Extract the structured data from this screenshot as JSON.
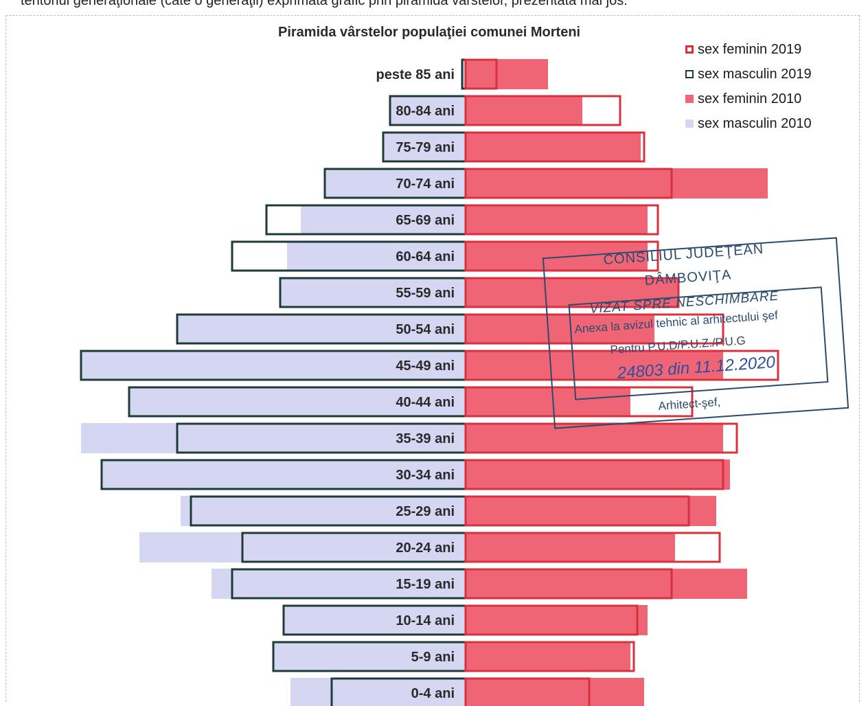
{
  "page_caption": "teritoriul generaţionale (câte o generaţii) exprimată grafic prin piramida vârstelor, prezentată mai jos:",
  "colors": {
    "female_2019": "#d8303f",
    "male_2019": "#1d3b37",
    "female_2010": "#f06576",
    "male_2010": "#d4d6f2"
  },
  "chart_data": {
    "type": "bar",
    "orientation": "horizontal-pyramid",
    "title": "Piramida vârstelor populaţiei comunei Morteni",
    "categories": [
      "peste 85 ani",
      "80-84 ani",
      "75-79 ani",
      "70-74 ani",
      "65-69 ani",
      "60-64 ani",
      "55-59 ani",
      "50-54 ani",
      "45-49 ani",
      "40-44 ani",
      "35-39 ani",
      "30-34 ani",
      "25-29 ani",
      "20-24 ani",
      "15-19 ani",
      "10-14 ani",
      "5-9 ani",
      "0-4 ani"
    ],
    "legend": [
      "sex feminin 2019",
      "sex masculin 2019",
      "sex feminin 2010",
      "sex masculin 2010"
    ],
    "legend_position": "top-right",
    "grid": false,
    "series": [
      {
        "name": "sex feminin 2019",
        "side": "right",
        "style": "outline",
        "values": [
          9,
          45,
          52,
          60,
          56,
          56,
          62,
          75,
          91,
          66,
          79,
          75,
          65,
          74,
          60,
          50,
          49,
          36
        ]
      },
      {
        "name": "sex masculin 2019",
        "side": "left",
        "style": "outline",
        "values": [
          1,
          22,
          24,
          41,
          58,
          68,
          54,
          84,
          112,
          98,
          84,
          106,
          80,
          65,
          68,
          53,
          56,
          39
        ]
      },
      {
        "name": "sex feminin 2010",
        "side": "right",
        "style": "fill",
        "values": [
          24,
          34,
          51,
          88,
          53,
          53,
          62,
          55,
          75,
          48,
          75,
          77,
          73,
          61,
          82,
          53,
          48,
          52
        ]
      },
      {
        "name": "sex masculin 2010",
        "side": "left",
        "style": "fill",
        "values": [
          1,
          22,
          24,
          41,
          48,
          52,
          54,
          84,
          112,
          98,
          112,
          106,
          83,
          95,
          74,
          53,
          56,
          51
        ]
      }
    ]
  },
  "stamp": {
    "line1": "CONSILIUL JUDEŢEAN",
    "line2": "DÂMBOVIŢA",
    "line3": "VIZAT SPRE NESCHIMBARE",
    "line4": "Anexa la avizul tehnic al arhitectului şef",
    "line5": "Pentru P.U.D/P.U.Z./P.U.G",
    "line6": "24803 din 11.12.2020",
    "line7": "Arhitect-şef,"
  }
}
